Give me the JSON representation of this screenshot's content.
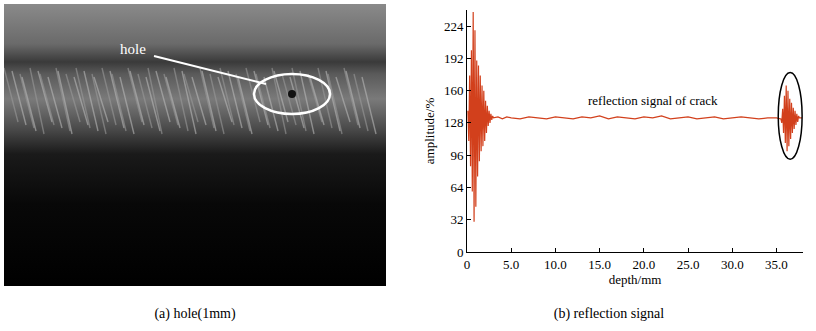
{
  "photo": {
    "label": "hole",
    "caption": "(a) hole(1mm)"
  },
  "chart_data": {
    "type": "line",
    "caption": "(b) reflection signal",
    "x_label": "depth/mm",
    "y_label": "amplitude/%",
    "annotation": "reflection signal of crack",
    "color": "#d2401c",
    "grid": false,
    "xlim": [
      0,
      38
    ],
    "ylim": [
      0,
      240
    ],
    "xticks": [
      0,
      {
        "value": 5,
        "label": "5.0"
      },
      {
        "value": 10,
        "label": "10.0"
      },
      {
        "value": 15,
        "label": "15.0"
      },
      {
        "value": 20,
        "label": "20.0"
      },
      {
        "value": 25,
        "label": "25.0"
      },
      {
        "value": 30,
        "label": "30.0"
      },
      {
        "value": 35,
        "label": "35.0"
      }
    ],
    "yticks": [
      0,
      32,
      64,
      96,
      128,
      160,
      192,
      224
    ],
    "x": [
      0.1,
      0.2,
      0.3,
      0.4,
      0.5,
      0.6,
      0.7,
      0.8,
      0.9,
      1.0,
      1.1,
      1.2,
      1.3,
      1.4,
      1.5,
      1.6,
      1.7,
      1.8,
      1.9,
      2.0,
      2.1,
      2.2,
      2.3,
      2.4,
      2.5,
      2.6,
      2.7,
      2.8,
      2.9,
      3.0,
      3.5,
      4,
      4.5,
      5,
      6,
      7,
      8,
      9,
      10,
      11,
      12,
      13,
      14,
      15,
      16,
      17,
      18,
      19,
      20,
      21,
      22,
      23,
      24,
      25,
      26,
      27,
      28,
      29,
      30,
      31,
      32,
      33,
      34,
      35,
      35.5,
      35.6,
      35.7,
      35.8,
      35.9,
      36.0,
      36.1,
      36.2,
      36.3,
      36.4,
      36.5,
      36.6,
      36.7,
      36.8,
      36.9,
      37.0,
      37.1,
      37.2,
      37.3,
      37.4,
      37.5,
      37.6,
      37.9
    ],
    "values": [
      140,
      110,
      175,
      85,
      200,
      60,
      238,
      30,
      220,
      45,
      190,
      75,
      185,
      90,
      175,
      100,
      165,
      105,
      160,
      110,
      150,
      118,
      145,
      125,
      140,
      128,
      137,
      131,
      135,
      133,
      134,
      132,
      134,
      133,
      132,
      134,
      133,
      132,
      134,
      133,
      132,
      134,
      133,
      135,
      132,
      134,
      133,
      132,
      134,
      133,
      135,
      132,
      133,
      134,
      132,
      133,
      134,
      132,
      133,
      134,
      133,
      132,
      133,
      133,
      132,
      128,
      142,
      118,
      155,
      108,
      165,
      100,
      160,
      105,
      152,
      112,
      148,
      118,
      143,
      122,
      140,
      126,
      137,
      129,
      135,
      133,
      133
    ]
  }
}
